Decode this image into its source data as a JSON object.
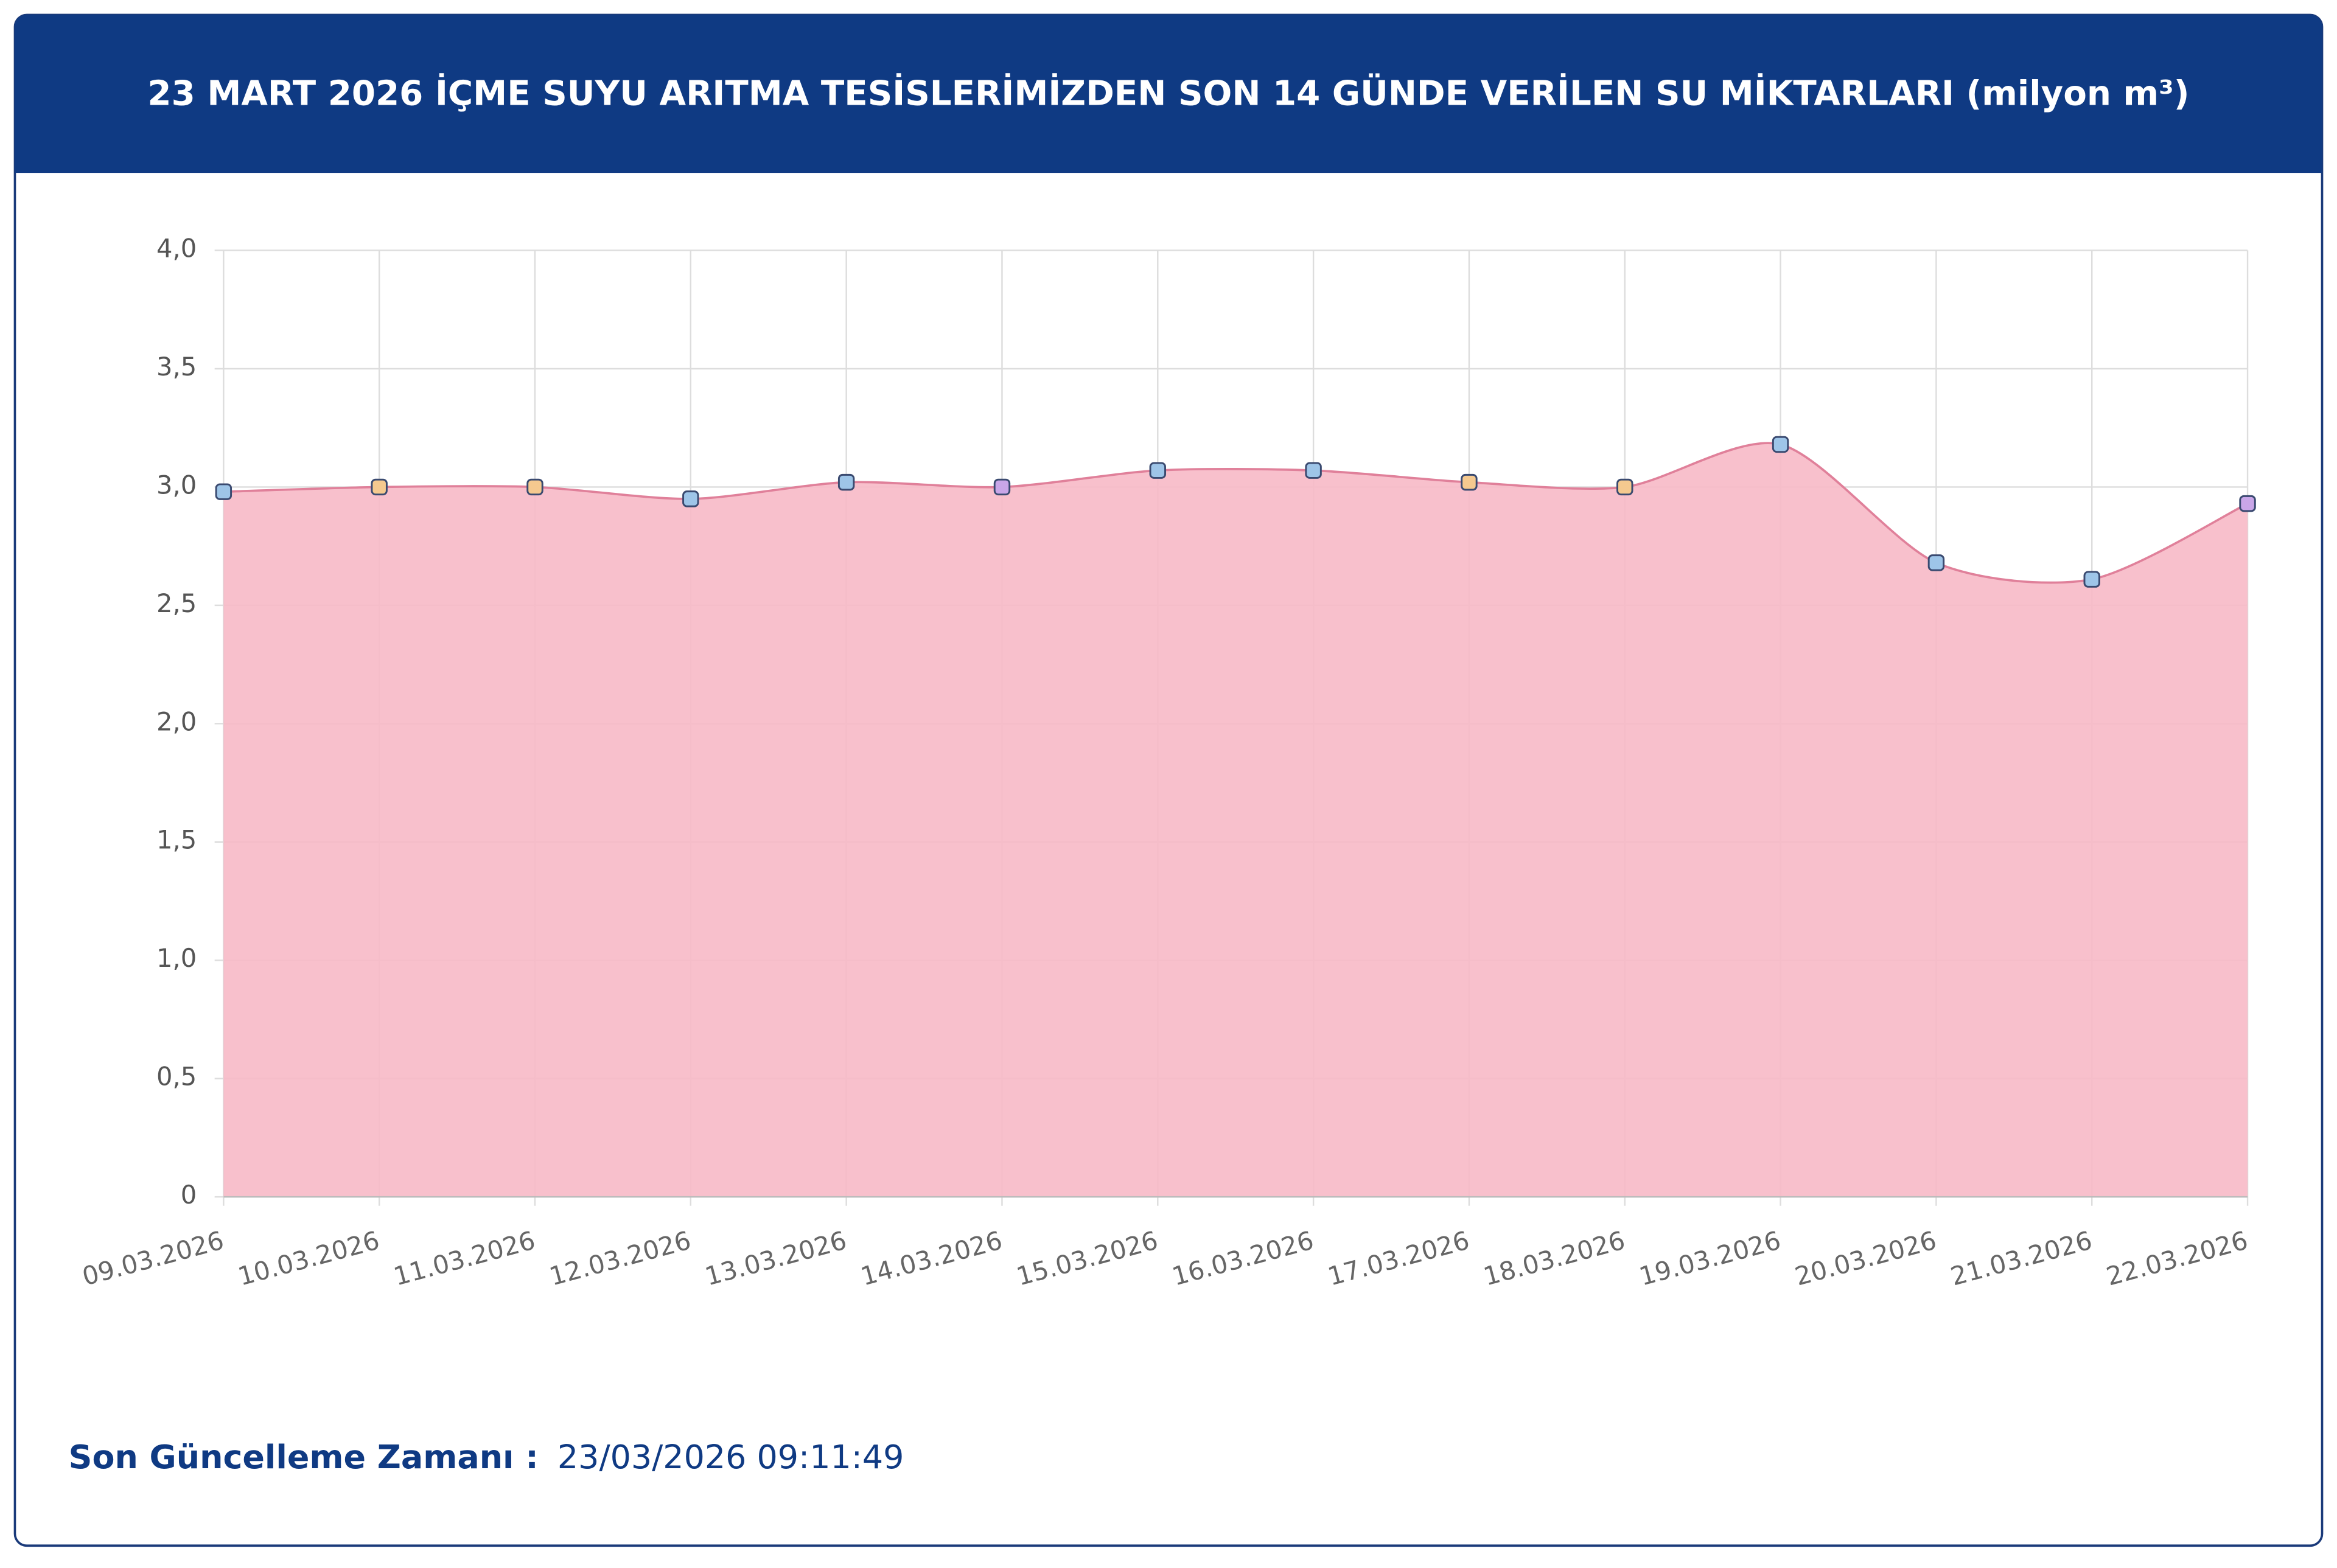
{
  "chart_data": {
    "type": "area",
    "title": "23 MART 2026 İÇME SUYU ARITMA TESİSLERİMİZDEN SON 14 GÜNDE VERİLEN SU MİKTARLARI (milyon m³)",
    "categories": [
      "09.03.2026",
      "10.03.2026",
      "11.03.2026",
      "12.03.2026",
      "13.03.2026",
      "14.03.2026",
      "15.03.2026",
      "16.03.2026",
      "17.03.2026",
      "18.03.2026",
      "19.03.2026",
      "20.03.2026",
      "21.03.2026",
      "22.03.2026"
    ],
    "series": [
      {
        "color": "#f7b9c7",
        "line_color": "#e0809a",
        "values": [
          2.98,
          3.0,
          3.0,
          2.95,
          3.02,
          3.0,
          3.07,
          3.07,
          3.02,
          3.0,
          3.18,
          2.68,
          2.61,
          2.93
        ],
        "marker_colors": [
          "#9ec5e8",
          "#f5c98f",
          "#f5c98f",
          "#9ec5e8",
          "#9ec5e8",
          "#c9a6e8",
          "#9ec5e8",
          "#9ec5e8",
          "#f5c98f",
          "#f5c98f",
          "#9ec5e8",
          "#9ec5e8",
          "#9ec5e8",
          "#c9a6e8"
        ]
      }
    ],
    "ylim": [
      0,
      4
    ],
    "yticks": [
      0,
      {
        "value": 0.5,
        "label": "0,5"
      },
      {
        "value": 1,
        "label": "1,0"
      },
      {
        "value": 1.5,
        "label": "1,5"
      },
      {
        "value": 2,
        "label": "2,0"
      },
      {
        "value": 2.5,
        "label": "2,5"
      },
      {
        "value": 3,
        "label": "3,0"
      },
      {
        "value": 3.5,
        "label": "3,5"
      },
      {
        "value": 4,
        "label": "4,0"
      }
    ],
    "grid": true
  },
  "footer": {
    "label": "Son Güncelleme Zamanı :",
    "value": "23/03/2026 09:11:49"
  }
}
